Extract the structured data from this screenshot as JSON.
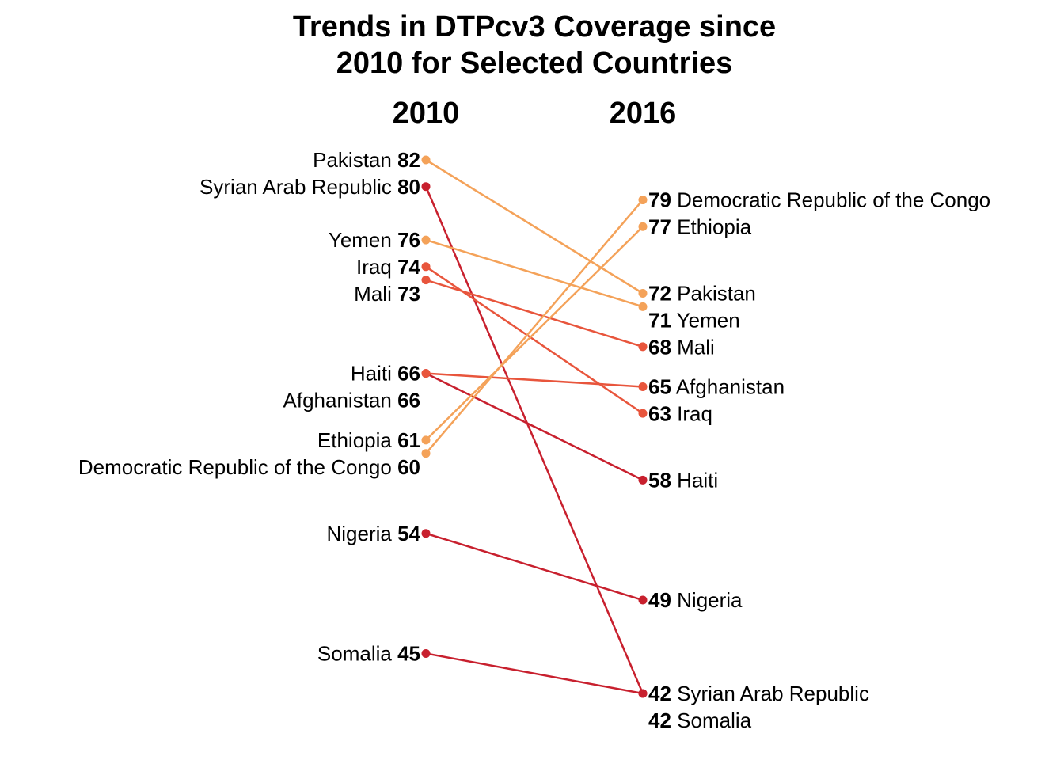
{
  "chart_data": {
    "type": "slope",
    "title": [
      "Trends in DTPcv3 Coverage since",
      "2010 for Selected Countries"
    ],
    "x": [
      "2010",
      "2016"
    ],
    "colors": {
      "light": "#f4a259",
      "mid": "#e8553c",
      "dark": "#c8202e"
    },
    "series": [
      {
        "name": "Pakistan",
        "values": [
          82,
          72
        ],
        "color": "#f4a259",
        "label_left": true,
        "label_right": true
      },
      {
        "name": "Syrian Arab Republic",
        "values": [
          80,
          42
        ],
        "color": "#c8202e",
        "label_left": true,
        "label_right": true
      },
      {
        "name": "Yemen",
        "values": [
          76,
          71
        ],
        "color": "#f4a259",
        "label_left": true,
        "label_right": true
      },
      {
        "name": "Iraq",
        "values": [
          74,
          63
        ],
        "color": "#e8553c",
        "label_left": true,
        "label_right": true
      },
      {
        "name": "Mali",
        "values": [
          73,
          68
        ],
        "color": "#e8553c",
        "label_left": true,
        "label_right": true
      },
      {
        "name": "Haiti",
        "values": [
          66,
          58
        ],
        "color": "#c8202e",
        "label_left": true,
        "label_right": true
      },
      {
        "name": "Afghanistan",
        "values": [
          66,
          65
        ],
        "color": "#e8553c",
        "label_left": true,
        "label_right": true
      },
      {
        "name": "Ethiopia",
        "values": [
          61,
          77
        ],
        "color": "#f4a259",
        "label_left": true,
        "label_right": true
      },
      {
        "name": "Democratic Republic of the Congo",
        "values": [
          60,
          79
        ],
        "color": "#f4a259",
        "label_left": true,
        "label_right": true
      },
      {
        "name": "Nigeria",
        "values": [
          54,
          49
        ],
        "color": "#c8202e",
        "label_left": true,
        "label_right": true
      },
      {
        "name": "Somalia",
        "values": [
          45,
          42
        ],
        "color": "#c8202e",
        "label_left": true,
        "label_right": true
      }
    ]
  }
}
